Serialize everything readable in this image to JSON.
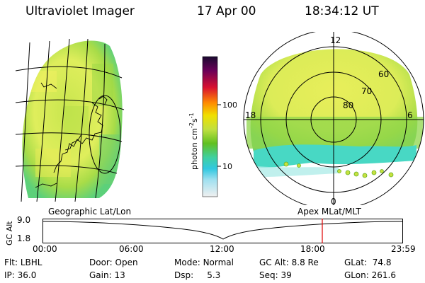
{
  "header": {
    "instrument": "Ultraviolet Imager",
    "date": "17 Apr 00",
    "time": "18:34:12 UT"
  },
  "colorbar": {
    "unit": "photon cm",
    "unit_exp1": "-2",
    "unit_mid": "s",
    "unit_exp2": "-1",
    "tick_high": "100",
    "tick_low": "10"
  },
  "polar": {
    "mlt_top": "12",
    "mlt_left": "18",
    "mlt_right": "6",
    "mlt_bottom": "0",
    "lat_60": "60",
    "lat_70": "70",
    "lat_80": "80"
  },
  "panel_labels": {
    "geographic": "Geographic Lat/Lon",
    "apex": "Apex  MLat/MLT"
  },
  "altitude_plot": {
    "ylabel": "GC Alt",
    "ymax": "9.0",
    "ymin": "1.8",
    "ticks": [
      "00:00",
      "06:00",
      "12:00",
      "18:00",
      "23:59"
    ],
    "marker_time": "18:34"
  },
  "info": {
    "filter_label": "Flt:",
    "filter_value": "LBHL",
    "door_label": "Door:",
    "door_value": "Open",
    "mode_label": "Mode:",
    "mode_value": "Normal",
    "gcalt_label": "GC Alt:",
    "gcalt_value": "8.8 Re",
    "glat_label": "GLat:",
    "glat_value": "74.8",
    "ip_label": "IP:",
    "ip_value": "36.0",
    "gain_label": "Gain:",
    "gain_value": "13",
    "dsp_label": "Dsp:",
    "dsp_value": "5.3",
    "seq_label": "Seq:",
    "seq_value": "39",
    "glon_label": "GLon:",
    "glon_value": "261.6"
  },
  "colors": {
    "background": "#ffffff",
    "marker": "#e00000",
    "aurora_yellow": "#e8ee5a",
    "aurora_green": "#9ed84a",
    "aurora_cyan": "#40d8c8"
  }
}
